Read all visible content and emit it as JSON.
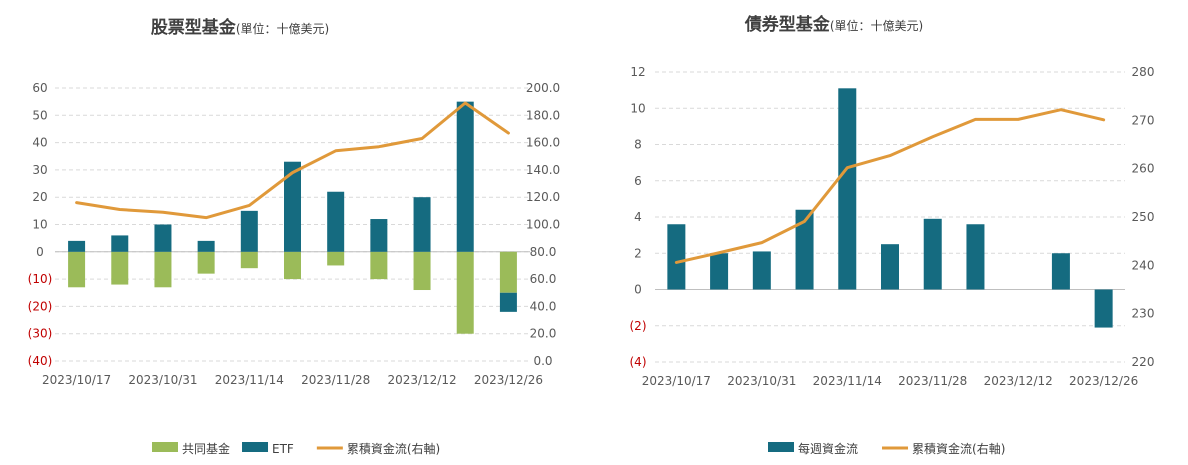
{
  "colors": {
    "mutual": "#9bbb59",
    "etf": "#156b80",
    "weekly": "#156b80",
    "cumulative": "#e0993a",
    "grid": "#d9d9d9",
    "negative_tick": "#c00000"
  },
  "chart_data": [
    {
      "type": "bar",
      "stacked": true,
      "title": "股票型基金",
      "subtitle": "(單位：十億美元)",
      "x_tick_labels": [
        "2023/10/17",
        "2023/10/31",
        "2023/11/14",
        "2023/11/28",
        "2023/12/12",
        "2023/12/26"
      ],
      "x_tick_every": 2,
      "y_left": {
        "min": -40,
        "max": 60,
        "step": 10,
        "labels": [
          "(40)",
          "(30)",
          "(20)",
          "(10)",
          "0",
          "10",
          "20",
          "30",
          "40",
          "50",
          "60"
        ]
      },
      "y_right": {
        "min": 0,
        "max": 200,
        "step": 20,
        "labels": [
          "0.0",
          "20.0",
          "40.0",
          "60.0",
          "80.0",
          "100.0",
          "120.0",
          "140.0",
          "160.0",
          "180.0",
          "200.0"
        ]
      },
      "series": [
        {
          "name": "共同基金",
          "kind": "bar",
          "axis": "left",
          "values": [
            -13,
            -12,
            -13,
            -8,
            -6,
            -10,
            -5,
            -10,
            -14,
            -30,
            -15
          ]
        },
        {
          "name": "ETF",
          "kind": "bar",
          "axis": "left",
          "values": [
            4,
            6,
            10,
            4,
            15,
            33,
            22,
            12,
            20,
            55,
            -7
          ]
        },
        {
          "name": "累積資金流(右軸)",
          "kind": "line",
          "axis": "right",
          "values": [
            116,
            111,
            109,
            105,
            114,
            138,
            154,
            157,
            163,
            189,
            167
          ]
        }
      ],
      "legend": {
        "position": "bottom",
        "items": [
          "共同基金",
          "ETF",
          "累積資金流(右軸)"
        ]
      }
    },
    {
      "type": "bar",
      "title": "債券型基金",
      "subtitle": "(單位：十億美元)",
      "x_tick_labels": [
        "2023/10/17",
        "2023/10/31",
        "2023/11/14",
        "2023/11/28",
        "2023/12/12",
        "2023/12/26"
      ],
      "x_tick_every": 2,
      "y_left": {
        "min": -4,
        "max": 12,
        "step": 2,
        "labels": [
          "(4)",
          "(2)",
          "0",
          "2",
          "4",
          "6",
          "8",
          "10",
          "12"
        ]
      },
      "y_right": {
        "min": 220,
        "max": 280,
        "step": 10,
        "labels": [
          "220",
          "230",
          "240",
          "250",
          "260",
          "270",
          "280"
        ]
      },
      "series": [
        {
          "name": "每週資金流",
          "kind": "bar",
          "axis": "left",
          "values": [
            3.6,
            2.0,
            2.1,
            4.4,
            11.1,
            2.5,
            3.9,
            3.6,
            0,
            2.0,
            -2.1
          ]
        },
        {
          "name": "累積資金流(右軸)",
          "kind": "line",
          "axis": "right",
          "values": [
            240.6,
            242.6,
            244.7,
            249.1,
            260.2,
            262.7,
            266.6,
            270.2,
            270.2,
            272.2,
            270.1
          ]
        }
      ],
      "legend": {
        "position": "bottom",
        "items": [
          "每週資金流",
          "累積資金流(右軸)"
        ]
      }
    }
  ]
}
